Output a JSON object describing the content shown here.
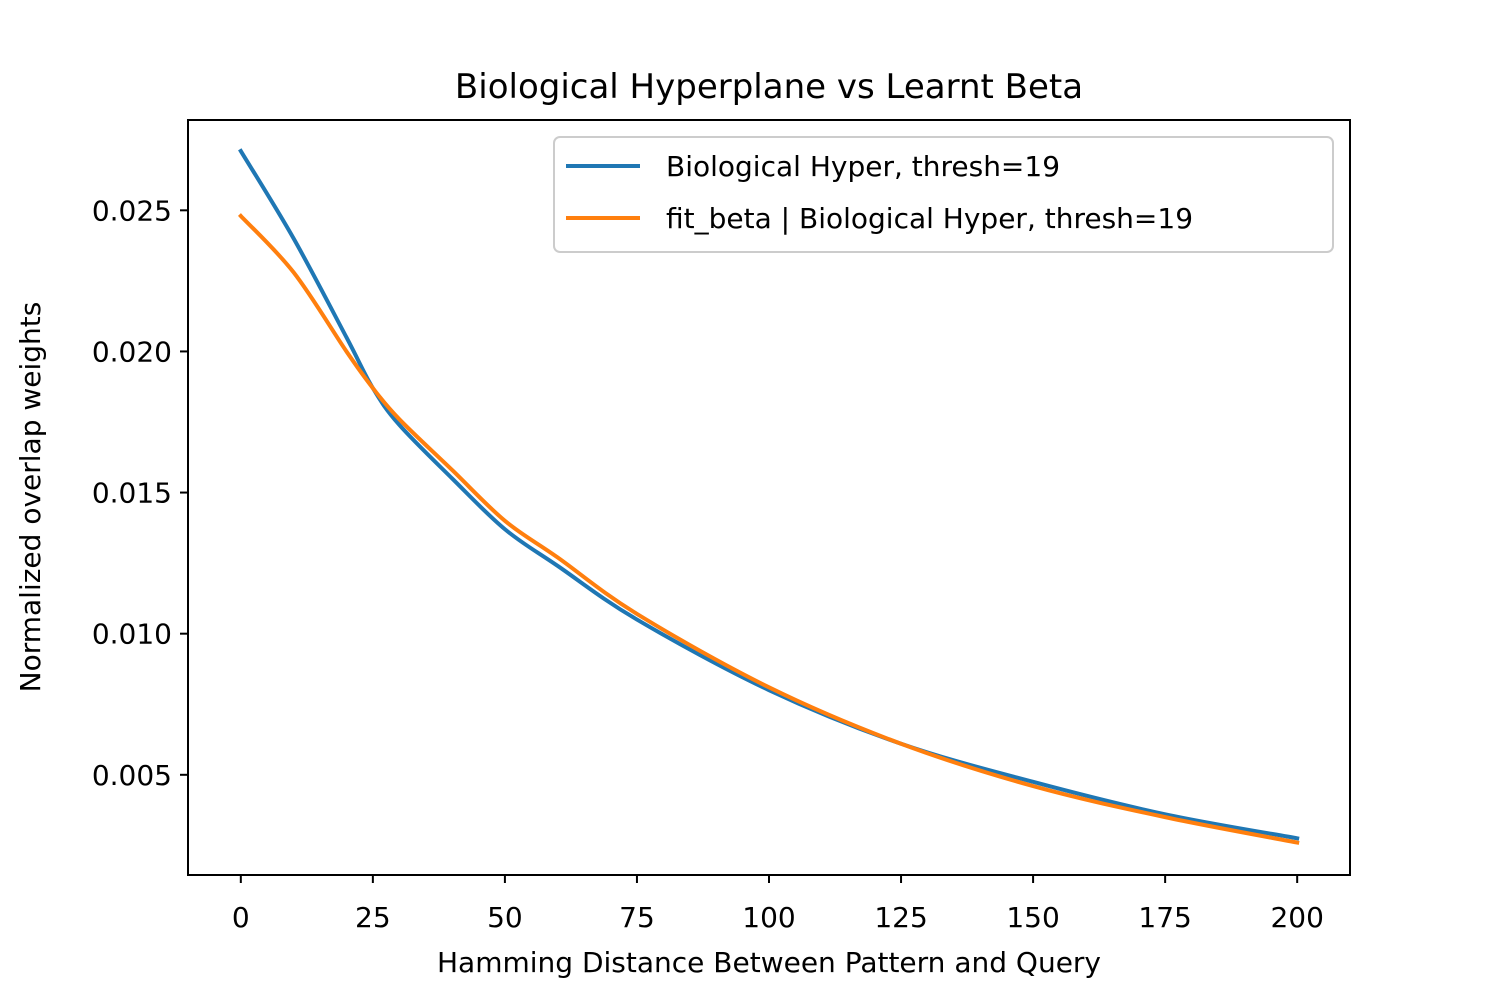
{
  "chart_data": {
    "type": "line",
    "title": "Biological Hyperplane vs Learnt Beta",
    "xlabel": "Hamming Distance Between Pattern and Query",
    "ylabel": "Normalized overlap weights",
    "xlim": [
      -10,
      210
    ],
    "ylim": [
      0.00145,
      0.0282
    ],
    "xticks": [
      0,
      25,
      50,
      75,
      100,
      125,
      150,
      175,
      200
    ],
    "xtick_labels": [
      "0",
      "25",
      "50",
      "75",
      "100",
      "125",
      "150",
      "175",
      "200"
    ],
    "yticks": [
      0.005,
      0.01,
      0.015,
      0.02,
      0.025
    ],
    "ytick_labels": [
      "0.005",
      "0.010",
      "0.015",
      "0.020",
      "0.025"
    ],
    "grid": false,
    "legend_position": "top-right",
    "series": [
      {
        "name": "Biological Hyper, thresh=19",
        "color": "#1f77b4",
        "x": [
          0,
          10,
          20,
          25,
          30,
          40,
          50,
          60,
          75,
          100,
          125,
          150,
          175,
          200
        ],
        "y": [
          0.0271,
          0.024,
          0.0205,
          0.0187,
          0.0174,
          0.0155,
          0.0137,
          0.0124,
          0.0105,
          0.008,
          0.0061,
          0.00475,
          0.0036,
          0.00275
        ]
      },
      {
        "name": "fit_beta | Biological Hyper, thresh=19",
        "color": "#ff7f0e",
        "x": [
          0,
          10,
          20,
          25,
          30,
          40,
          50,
          60,
          75,
          100,
          125,
          150,
          175,
          200
        ],
        "y": [
          0.0248,
          0.0228,
          0.02,
          0.0187,
          0.0176,
          0.0158,
          0.014,
          0.0127,
          0.0107,
          0.0081,
          0.0061,
          0.0046,
          0.0035,
          0.0026
        ]
      }
    ]
  }
}
